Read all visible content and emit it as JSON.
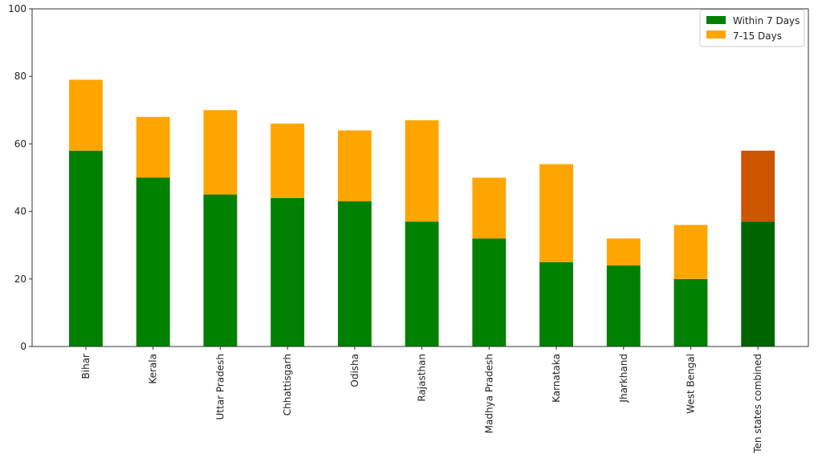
{
  "chart_data": {
    "type": "bar",
    "stacked": true,
    "categories": [
      "Bihar",
      "Kerala",
      "Uttar Pradesh",
      "Chhattisgarh",
      "Odisha",
      "Rajasthan",
      "Madhya Pradesh",
      "Karnataka",
      "Jharkhand",
      "West Bengal",
      "Ten states combined"
    ],
    "series": [
      {
        "name": "Within 7 Days",
        "values": [
          58,
          50,
          45,
          44,
          43,
          37,
          32,
          25,
          24,
          20,
          37
        ],
        "color": "#008000",
        "highlight_color": "#006400"
      },
      {
        "name": "7-15 Days",
        "values": [
          21,
          18,
          25,
          22,
          21,
          30,
          18,
          29,
          8,
          16,
          21
        ],
        "color": "#FFA500",
        "highlight_color": "#CC5500"
      }
    ],
    "highlighted_category": "Ten states combined",
    "y_ticks": [
      "0",
      "20",
      "40",
      "60",
      "80",
      "100"
    ],
    "ylim": [
      0,
      100
    ],
    "grid": false,
    "legend_position": "top-right"
  }
}
